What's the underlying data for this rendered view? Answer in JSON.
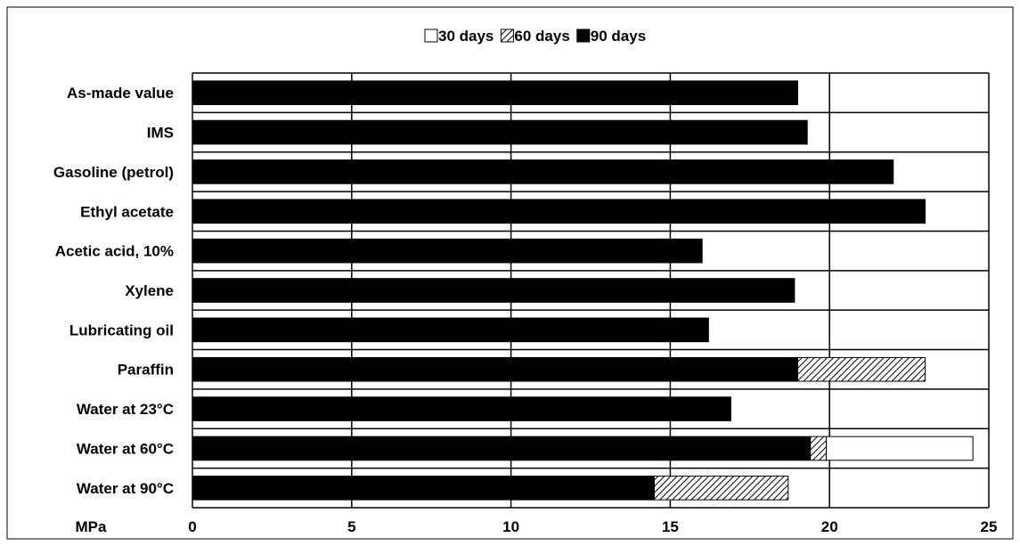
{
  "chart_data": {
    "type": "bar",
    "orientation": "horizontal",
    "stacked": true,
    "categories": [
      "As-made value",
      "IMS",
      "Gasoline (petrol)",
      "Ethyl acetate",
      "Acetic acid, 10%",
      "Xylene",
      "Lubricating oil",
      "Paraffin",
      "Water at 23°C",
      "Water at 60°C",
      "Water at 90°C"
    ],
    "series": [
      {
        "name": "90 days",
        "color": "#000000",
        "pattern": "solid",
        "values": [
          19.0,
          19.3,
          22.0,
          23.0,
          16.0,
          18.9,
          16.2,
          19.0,
          16.9,
          19.4,
          14.5
        ]
      },
      {
        "name": "60 days",
        "color": "#ffffff",
        "pattern": "hatch",
        "values": [
          0,
          0,
          0,
          0,
          0,
          0,
          0,
          4.0,
          0,
          0.5,
          4.2
        ]
      },
      {
        "name": "30 days",
        "color": "#ffffff",
        "pattern": "open",
        "values": [
          0,
          0,
          0,
          0,
          0,
          0,
          0,
          0,
          0,
          4.6,
          0
        ]
      }
    ],
    "xlim": [
      0,
      25
    ],
    "xticks": [
      "0",
      "5",
      "10",
      "15",
      "20",
      "25"
    ],
    "xunit_label": "MPa",
    "legend_position": "top-center",
    "grid": true
  }
}
